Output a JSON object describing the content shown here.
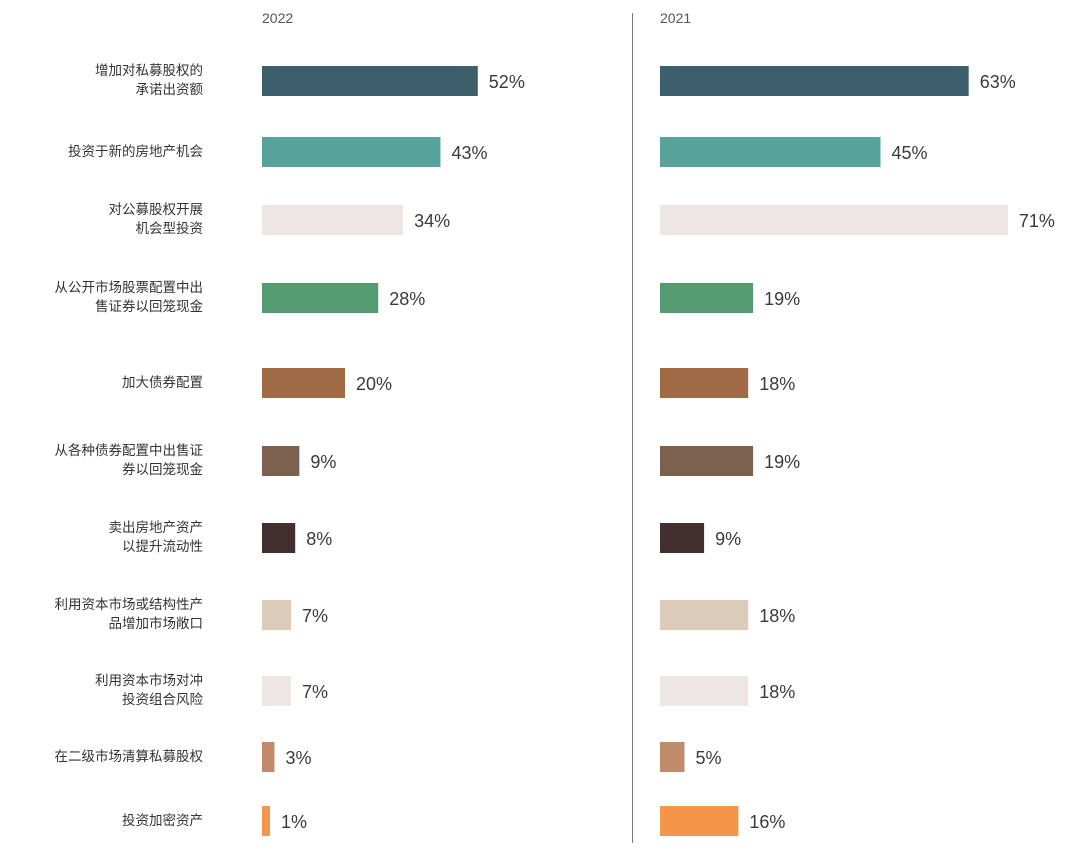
{
  "chart_data": {
    "type": "bar",
    "orientation": "horizontal",
    "categories": [
      [
        "增加对私募股权的",
        "承诺出资额"
      ],
      [
        "投资于新的房地产机会"
      ],
      [
        "对公募股权开展",
        "机会型投资"
      ],
      [
        "从公开市场股票配置中出",
        "售证券以回笼现金"
      ],
      [
        "加大债券配置"
      ],
      [
        "从各种债券配置中出售证",
        "券以回笼现金"
      ],
      [
        "卖出房地产资产",
        "以提升流动性"
      ],
      [
        "利用资本市场或结构性产",
        "品增加市场敞口"
      ],
      [
        "利用资本市场对冲",
        "投资组合风险"
      ],
      [
        "在二级市场清算私募股权"
      ],
      [
        "投资加密资产"
      ]
    ],
    "series": [
      {
        "name": "2022",
        "values": [
          52,
          43,
          34,
          28,
          20,
          9,
          8,
          7,
          7,
          3,
          1
        ],
        "labels": [
          "52%",
          "43%",
          "34%",
          "28%",
          "20%",
          "9%",
          "8%",
          "7%",
          "7%",
          "3%",
          "1%"
        ]
      },
      {
        "name": "2021",
        "values": [
          63,
          45,
          71,
          19,
          18,
          19,
          9,
          18,
          18,
          5,
          16
        ],
        "labels": [
          "63%",
          "45%",
          "71%",
          "19%",
          "18%",
          "19%",
          "9%",
          "18%",
          "18%",
          "5%",
          "16%"
        ]
      }
    ],
    "colors": [
      "#3c5f6b",
      "#57a39b",
      "#ede6e2",
      "#559b70",
      "#a06a45",
      "#7b614e",
      "#432f2e",
      "#dccbb8",
      "#ede6e2",
      "#c08b6a",
      "#f4954a"
    ],
    "unit": "%"
  }
}
